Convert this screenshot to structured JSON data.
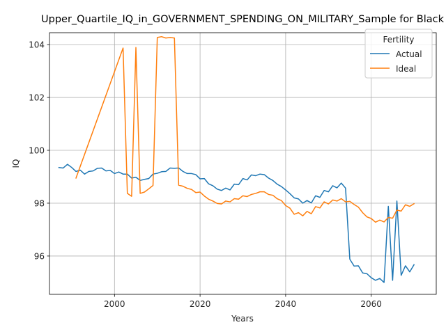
{
  "chart_data": {
    "type": "line",
    "title": "Upper_Quartile_IQ_in_GOVERNMENT_SPENDING_ON_MILITARY_Sample for Black",
    "xlabel": "Years",
    "ylabel": "IQ",
    "xlim": [
      1984.8,
      2075.2
    ],
    "ylim": [
      94.55,
      104.45
    ],
    "xticks": [
      2000,
      2020,
      2040,
      2060
    ],
    "yticks": [
      96,
      98,
      100,
      102,
      104
    ],
    "grid": true,
    "legend": {
      "title": "Fertility",
      "placement": "top-right"
    },
    "series": [
      {
        "name": "Actual",
        "color": "#1f77b4",
        "x": [
          1987,
          1988,
          1989,
          1990,
          1991,
          1992,
          1993,
          1994,
          1995,
          1996,
          1997,
          1998,
          1999,
          2000,
          2001,
          2002,
          2003,
          2004,
          2005,
          2006,
          2007,
          2008,
          2009,
          2010,
          2011,
          2012,
          2013,
          2014,
          2015,
          2016,
          2017,
          2018,
          2019,
          2020,
          2021,
          2022,
          2023,
          2024,
          2025,
          2026,
          2027,
          2028,
          2029,
          2030,
          2031,
          2032,
          2033,
          2034,
          2035,
          2036,
          2037,
          2038,
          2039,
          2040,
          2041,
          2042,
          2043,
          2044,
          2045,
          2046,
          2047,
          2048,
          2049,
          2050,
          2051,
          2052,
          2053,
          2054,
          2055,
          2056,
          2057,
          2058,
          2059,
          2060,
          2061,
          2062,
          2063,
          2064,
          2065,
          2066,
          2067,
          2068,
          2069,
          2070
        ],
        "values": [
          99.35,
          99.33,
          99.47,
          99.35,
          99.2,
          99.25,
          99.1,
          99.2,
          99.22,
          99.32,
          99.33,
          99.22,
          99.24,
          99.12,
          99.18,
          99.1,
          99.1,
          98.95,
          98.98,
          98.86,
          98.9,
          98.93,
          99.1,
          99.13,
          99.19,
          99.2,
          99.33,
          99.32,
          99.33,
          99.2,
          99.12,
          99.12,
          99.08,
          98.92,
          98.93,
          98.73,
          98.66,
          98.53,
          98.48,
          98.57,
          98.5,
          98.72,
          98.7,
          98.93,
          98.88,
          99.07,
          99.04,
          99.1,
          99.08,
          98.95,
          98.86,
          98.72,
          98.63,
          98.5,
          98.36,
          98.2,
          98.16,
          98.0,
          98.1,
          98.01,
          98.28,
          98.22,
          98.48,
          98.43,
          98.66,
          98.58,
          98.76,
          98.57,
          95.88,
          95.62,
          95.63,
          95.36,
          95.33,
          95.18,
          95.08,
          95.15,
          95.0,
          97.88,
          95.08,
          98.08,
          95.27,
          95.63,
          95.4,
          95.67
        ]
      },
      {
        "name": "Ideal",
        "color": "#ff7f0e",
        "x": [
          1991,
          2002,
          2003,
          2004,
          2005,
          2006,
          2007,
          2008,
          2009,
          2010,
          2011,
          2012,
          2013,
          2014,
          2015,
          2016,
          2017,
          2018,
          2019,
          2020,
          2021,
          2022,
          2023,
          2024,
          2025,
          2026,
          2027,
          2028,
          2029,
          2030,
          2031,
          2032,
          2033,
          2034,
          2035,
          2036,
          2037,
          2038,
          2039,
          2040,
          2041,
          2042,
          2043,
          2044,
          2045,
          2046,
          2047,
          2048,
          2049,
          2050,
          2051,
          2052,
          2053,
          2054,
          2055,
          2056,
          2057,
          2058,
          2059,
          2060,
          2061,
          2062,
          2063,
          2064,
          2065,
          2066,
          2067,
          2068,
          2069,
          2070
        ],
        "values": [
          98.95,
          103.87,
          98.37,
          98.26,
          103.89,
          98.37,
          98.42,
          98.54,
          98.67,
          104.27,
          104.3,
          104.25,
          104.27,
          104.25,
          98.68,
          98.64,
          98.56,
          98.52,
          98.4,
          98.42,
          98.27,
          98.15,
          98.08,
          97.99,
          97.97,
          98.08,
          98.05,
          98.17,
          98.15,
          98.28,
          98.25,
          98.33,
          98.37,
          98.43,
          98.43,
          98.33,
          98.3,
          98.17,
          98.1,
          97.91,
          97.81,
          97.58,
          97.64,
          97.52,
          97.69,
          97.6,
          97.87,
          97.82,
          98.05,
          97.97,
          98.12,
          98.08,
          98.17,
          98.05,
          98.07,
          97.95,
          97.85,
          97.64,
          97.48,
          97.42,
          97.28,
          97.36,
          97.29,
          97.46,
          97.43,
          97.74,
          97.7,
          97.94,
          97.88,
          97.98
        ]
      }
    ]
  }
}
